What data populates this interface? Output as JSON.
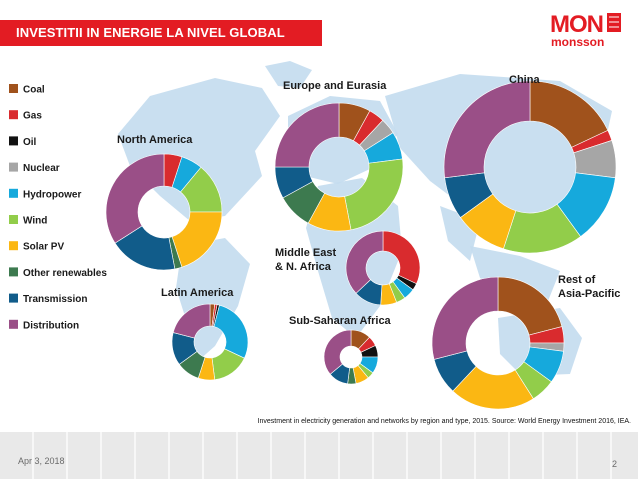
{
  "slide": {
    "title": "INVESTITII IN ENERGIE LA NIVEL GLOBAL",
    "logo_top": "MON",
    "logo_bottom": "monsson",
    "date": "Apr 3, 2018",
    "page_number": "2",
    "caption": "Investment in electricity generation and networks by region and type, 2015. Source: World Energy Investment 2016, IEA."
  },
  "colors": {
    "accent": "#e31c23",
    "map": "#c3dbee",
    "footer_tile": "#e9e9e9"
  },
  "chart_data": {
    "type": "donut",
    "title": "",
    "legend_position": "left",
    "categories": [
      "Coal",
      "Gas",
      "Oil",
      "Nuclear",
      "Hydropower",
      "Wind",
      "Solar PV",
      "Other renewables",
      "Transmission",
      "Distribution"
    ],
    "category_colors": [
      "#a0521c",
      "#d92b2e",
      "#111111",
      "#a6a6a6",
      "#16a9dc",
      "#92cd4a",
      "#fbb713",
      "#3d7a4f",
      "#115c8a",
      "#9a4f87"
    ],
    "regions": [
      {
        "name": "North America",
        "lines": [
          "North America"
        ],
        "values": [
          0,
          5,
          0,
          0,
          6,
          14,
          20,
          2,
          19,
          34
        ]
      },
      {
        "name": "Europe and Eurasia",
        "lines": [
          "Europe and Eurasia"
        ],
        "values": [
          8,
          4,
          0,
          4,
          7,
          24,
          11,
          9,
          8,
          25
        ]
      },
      {
        "name": "China",
        "lines": [
          "China"
        ],
        "values": [
          18,
          2,
          0,
          7,
          13,
          15,
          10,
          0,
          8,
          27
        ]
      },
      {
        "name": "Middle East & N. Africa",
        "lines": [
          "Middle East",
          "& N. Africa"
        ],
        "values": [
          0,
          32,
          3,
          0,
          5,
          4,
          7,
          0,
          12,
          37
        ]
      },
      {
        "name": "Latin America",
        "lines": [
          "Latin America"
        ],
        "values": [
          2,
          1,
          1,
          0,
          28,
          16,
          7,
          10,
          14,
          21
        ]
      },
      {
        "name": "Sub-Saharan Africa",
        "lines": [
          "Sub-Saharan Africa"
        ],
        "values": [
          12,
          6,
          7,
          0,
          10,
          4,
          8,
          5,
          12,
          36
        ]
      },
      {
        "name": "Rest of Asia-Pacific",
        "lines": [
          "Rest of",
          "Asia-Pacific"
        ],
        "values": [
          21,
          4,
          0,
          2,
          8,
          6,
          21,
          0,
          9,
          29
        ]
      }
    ]
  }
}
